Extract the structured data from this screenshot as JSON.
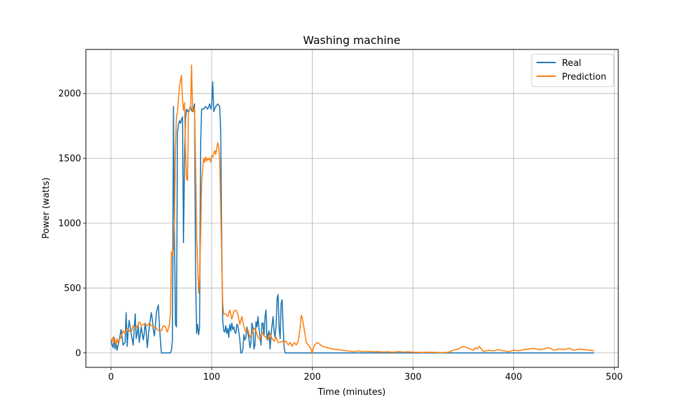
{
  "chart_data": {
    "type": "line",
    "title": "Washing machine",
    "xlabel": "Time (minutes)",
    "ylabel": "Power (watts)",
    "xlim": [
      -25,
      504
    ],
    "ylim": [
      -112,
      2340
    ],
    "xticks": [
      0,
      100,
      200,
      300,
      400,
      500
    ],
    "yticks": [
      0,
      500,
      1000,
      1500,
      2000
    ],
    "grid": true,
    "legend_position": "top-right",
    "series": [
      {
        "name": "Real",
        "color": "#1f77b4",
        "x": [
          0,
          1,
          2,
          3,
          4,
          5,
          6,
          7,
          8,
          10,
          12,
          14,
          15,
          16,
          17,
          18,
          20,
          22,
          24,
          25,
          26,
          27,
          28,
          30,
          32,
          33,
          34,
          35,
          36,
          37,
          38,
          40,
          41,
          42,
          43,
          44,
          45,
          46,
          47,
          48,
          50,
          52,
          54,
          56,
          57,
          58,
          59,
          60,
          61,
          62,
          63,
          64,
          65,
          66,
          67,
          68,
          69,
          70,
          71,
          72,
          73,
          74,
          75,
          76,
          77,
          78,
          79,
          80,
          81,
          82,
          83,
          84,
          85,
          86,
          87,
          88,
          89,
          90,
          92,
          94,
          96,
          98,
          99,
          100,
          101,
          102,
          103,
          104,
          106,
          108,
          109,
          110,
          111,
          112,
          113,
          114,
          115,
          116,
          117,
          118,
          119,
          120,
          121,
          122,
          123,
          124,
          125,
          126,
          127,
          128,
          129,
          130,
          131,
          132,
          133,
          134,
          135,
          136,
          137,
          138,
          139,
          140,
          141,
          142,
          143,
          144,
          145,
          146,
          147,
          148,
          149,
          150,
          151,
          152,
          153,
          154,
          155,
          156,
          157,
          158,
          159,
          160,
          161,
          162,
          163,
          164,
          165,
          166,
          167,
          168,
          169,
          170,
          171,
          172,
          173,
          174,
          175,
          180,
          200,
          250,
          300,
          350,
          400,
          450,
          480
        ],
        "values": [
          95,
          60,
          40,
          120,
          30,
          80,
          20,
          60,
          90,
          180,
          60,
          80,
          310,
          50,
          170,
          250,
          150,
          60,
          300,
          110,
          150,
          210,
          80,
          200,
          100,
          150,
          230,
          160,
          40,
          120,
          200,
          310,
          260,
          180,
          130,
          200,
          310,
          340,
          370,
          220,
          0,
          0,
          0,
          0,
          0,
          0,
          0,
          20,
          100,
          1900,
          900,
          220,
          200,
          1700,
          1760,
          1790,
          1770,
          1800,
          1820,
          850,
          1500,
          1800,
          1880,
          1860,
          1870,
          1880,
          1900,
          1870,
          1860,
          1890,
          1920,
          600,
          150,
          220,
          140,
          200,
          1600,
          1880,
          1880,
          1900,
          1880,
          1920,
          1880,
          1900,
          2090,
          1860,
          1880,
          1900,
          1920,
          1900,
          1700,
          800,
          250,
          170,
          160,
          210,
          150,
          190,
          120,
          220,
          170,
          230,
          180,
          200,
          160,
          150,
          220,
          210,
          160,
          100,
          0,
          0,
          30,
          140,
          100,
          120,
          200,
          150,
          110,
          40,
          80,
          230,
          190,
          30,
          60,
          240,
          200,
          280,
          190,
          130,
          60,
          230,
          230,
          130,
          280,
          330,
          100,
          140,
          170,
          30,
          140,
          210,
          280,
          160,
          120,
          210,
          420,
          450,
          190,
          110,
          380,
          410,
          200,
          40,
          0,
          0,
          0,
          0,
          0,
          0,
          0,
          0,
          0,
          0,
          0
        ]
      },
      {
        "name": "Prediction",
        "color": "#ff7f0e",
        "x": [
          0,
          1,
          2,
          3,
          4,
          5,
          6,
          7,
          8,
          10,
          12,
          14,
          16,
          18,
          20,
          22,
          24,
          26,
          28,
          30,
          32,
          34,
          36,
          38,
          40,
          42,
          44,
          46,
          48,
          50,
          52,
          54,
          56,
          58,
          59,
          60,
          61,
          62,
          63,
          64,
          65,
          66,
          67,
          68,
          69,
          70,
          71,
          72,
          73,
          74,
          75,
          76,
          77,
          78,
          79,
          80,
          81,
          82,
          83,
          84,
          85,
          86,
          87,
          88,
          89,
          90,
          91,
          92,
          93,
          94,
          95,
          96,
          97,
          98,
          99,
          100,
          101,
          102,
          103,
          104,
          105,
          106,
          107,
          108,
          109,
          110,
          111,
          112,
          114,
          116,
          118,
          120,
          122,
          124,
          126,
          128,
          130,
          132,
          134,
          136,
          138,
          140,
          142,
          144,
          146,
          148,
          150,
          152,
          154,
          156,
          158,
          160,
          162,
          164,
          166,
          168,
          170,
          172,
          174,
          176,
          178,
          180,
          182,
          184,
          186,
          188,
          189,
          190,
          192,
          194,
          196,
          198,
          200,
          202,
          205,
          210,
          215,
          220,
          225,
          230,
          235,
          240,
          245,
          250,
          255,
          260,
          265,
          270,
          275,
          280,
          285,
          290,
          295,
          300,
          305,
          310,
          315,
          320,
          325,
          330,
          335,
          340,
          345,
          350,
          355,
          360,
          362,
          364,
          366,
          368,
          370,
          375,
          380,
          385,
          390,
          395,
          400,
          405,
          410,
          415,
          420,
          425,
          430,
          435,
          440,
          445,
          450,
          455,
          460,
          465,
          470,
          475,
          480
        ],
        "values": [
          110,
          90,
          120,
          80,
          100,
          60,
          110,
          80,
          100,
          120,
          170,
          150,
          190,
          170,
          160,
          210,
          190,
          200,
          240,
          210,
          220,
          220,
          210,
          230,
          210,
          200,
          200,
          180,
          170,
          170,
          210,
          200,
          160,
          220,
          300,
          780,
          750,
          800,
          1020,
          1580,
          1830,
          1850,
          1960,
          2050,
          2100,
          2140,
          1950,
          1870,
          1930,
          1550,
          1340,
          1330,
          1850,
          1880,
          1880,
          2220,
          1870,
          1860,
          1890,
          1450,
          900,
          700,
          460,
          580,
          900,
          1300,
          1420,
          1500,
          1470,
          1510,
          1480,
          1500,
          1490,
          1500,
          1470,
          1520,
          1510,
          1540,
          1560,
          1530,
          1580,
          1620,
          1590,
          1480,
          1100,
          700,
          380,
          300,
          300,
          280,
          330,
          260,
          320,
          330,
          300,
          220,
          280,
          200,
          160,
          180,
          120,
          150,
          190,
          170,
          120,
          100,
          160,
          130,
          120,
          100,
          150,
          110,
          90,
          120,
          80,
          80,
          90,
          80,
          90,
          60,
          80,
          50,
          80,
          60,
          90,
          200,
          290,
          270,
          180,
          80,
          60,
          40,
          0,
          60,
          80,
          50,
          40,
          30,
          25,
          20,
          15,
          10,
          15,
          10,
          12,
          8,
          10,
          6,
          8,
          5,
          10,
          6,
          8,
          5,
          4,
          3,
          5,
          4,
          3,
          2,
          4,
          20,
          30,
          50,
          35,
          20,
          40,
          30,
          50,
          30,
          10,
          20,
          15,
          25,
          15,
          10,
          20,
          15,
          25,
          30,
          35,
          25,
          30,
          40,
          20,
          30,
          25,
          35,
          20,
          30,
          25,
          20,
          15
        ]
      }
    ]
  }
}
